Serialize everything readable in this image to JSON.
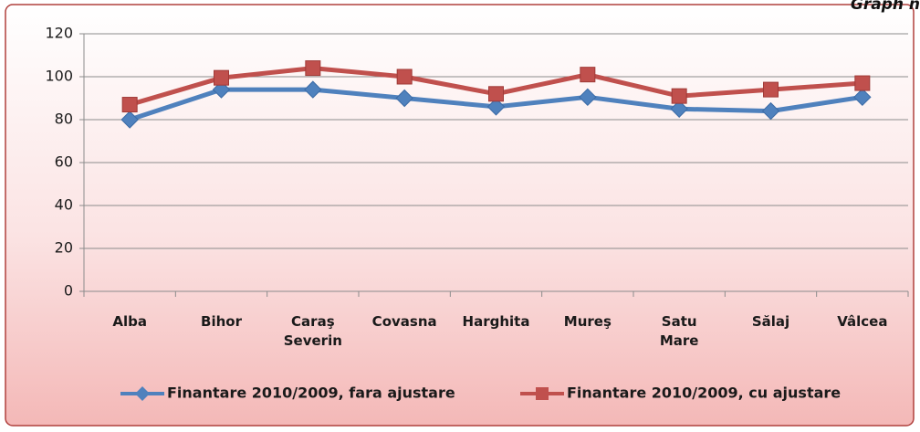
{
  "chart_data": {
    "type": "line",
    "annotation": "Graph n",
    "categories": [
      "Alba",
      "Bihor",
      "Caraş Severin",
      "Covasna",
      "Harghita",
      "Mureş",
      "Satu Mare",
      "Sălaj",
      "Vâlcea"
    ],
    "series": [
      {
        "name": "Finantare 2010/2009, fara ajustare",
        "color": "#4f81bd",
        "marker": "diamond",
        "values": [
          80,
          94,
          94,
          90,
          86,
          90.5,
          85,
          84,
          90.5
        ]
      },
      {
        "name": "Finantare 2010/2009, cu ajustare",
        "color": "#c0504d",
        "marker": "square",
        "values": [
          87,
          99.5,
          104,
          100,
          92,
          101,
          91,
          94,
          97
        ]
      }
    ],
    "ylim": [
      0,
      120
    ],
    "yticks": [
      0,
      20,
      40,
      60,
      80,
      100,
      120
    ],
    "grid": true
  }
}
